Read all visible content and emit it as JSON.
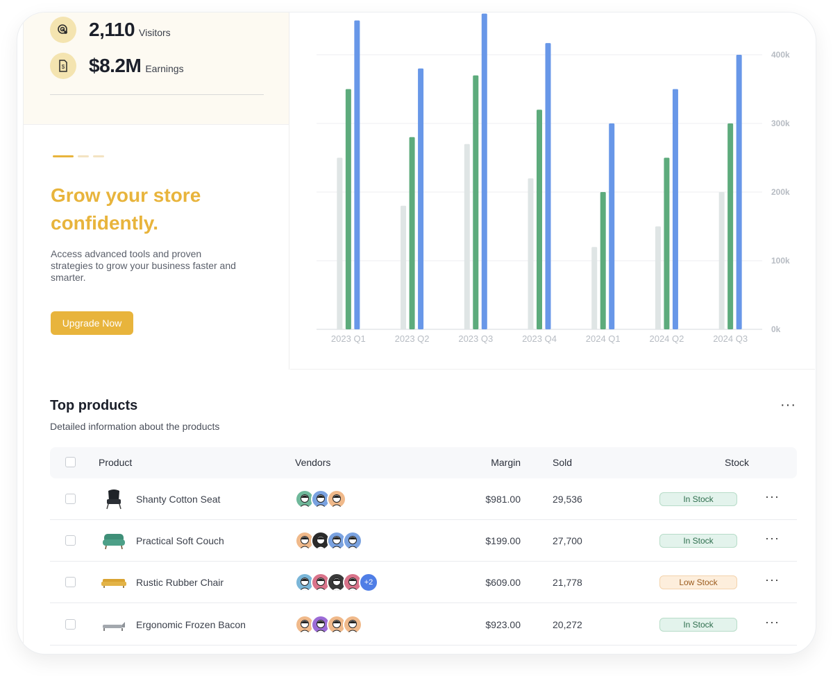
{
  "stats": [
    {
      "value": "2,110",
      "label": "Visitors",
      "icon": "cursor-click-icon"
    },
    {
      "value": "$8.2M",
      "label": "Earnings",
      "icon": "dollar-document-icon"
    }
  ],
  "promo": {
    "title": "Grow your store confidently.",
    "description": "Access advanced tools and proven strategies to grow your business faster and smarter.",
    "button_label": "Upgrade Now",
    "carousel_active_index": 0,
    "carousel_count": 3
  },
  "colors": {
    "accent": "#e8b43c",
    "series_gray": "#dfe5e5",
    "series_green": "#5dab7c",
    "series_blue": "#6897e8"
  },
  "chart_data": {
    "type": "bar",
    "categories": [
      "2023 Q1",
      "2023 Q2",
      "2023 Q3",
      "2023 Q4",
      "2024 Q1",
      "2024 Q2",
      "2024 Q3"
    ],
    "series": [
      {
        "values": [
          250000,
          180000,
          270000,
          220000,
          120000,
          150000,
          200000
        ]
      },
      {
        "values": [
          350000,
          280000,
          370000,
          320000,
          200000,
          250000,
          300000
        ]
      },
      {
        "values": [
          450000,
          380000,
          460000,
          417000,
          300000,
          350000,
          400000
        ]
      }
    ],
    "y_ticks": [
      "0k",
      "100k",
      "200k",
      "300k",
      "400k"
    ],
    "ylim": [
      0,
      460000
    ],
    "y_axis_side": "right",
    "grid": true
  },
  "products": {
    "title": "Top products",
    "subtitle": "Detailed information about the products",
    "columns": {
      "product": "Product",
      "vendors": "Vendors",
      "margin": "Margin",
      "sold": "Sold",
      "stock": "Stock"
    },
    "rows": [
      {
        "name": "Shanty Cotton Seat",
        "thumb": "armchair",
        "vendors": 3,
        "extra": "",
        "margin": "$981.00",
        "sold": "29,536",
        "stock": "In Stock",
        "stock_kind": "in"
      },
      {
        "name": "Practical Soft Couch",
        "thumb": "green-couch",
        "vendors": 4,
        "extra": "",
        "margin": "$199.00",
        "sold": "27,700",
        "stock": "In Stock",
        "stock_kind": "in"
      },
      {
        "name": "Rustic Rubber Chair",
        "thumb": "yellow-sofa",
        "vendors": 4,
        "extra": "+2",
        "margin": "$609.00",
        "sold": "21,778",
        "stock": "Low Stock",
        "stock_kind": "low"
      },
      {
        "name": "Ergonomic Frozen Bacon",
        "thumb": "chaise",
        "vendors": 4,
        "extra": "",
        "margin": "$923.00",
        "sold": "20,272",
        "stock": "In Stock",
        "stock_kind": "in"
      }
    ]
  }
}
